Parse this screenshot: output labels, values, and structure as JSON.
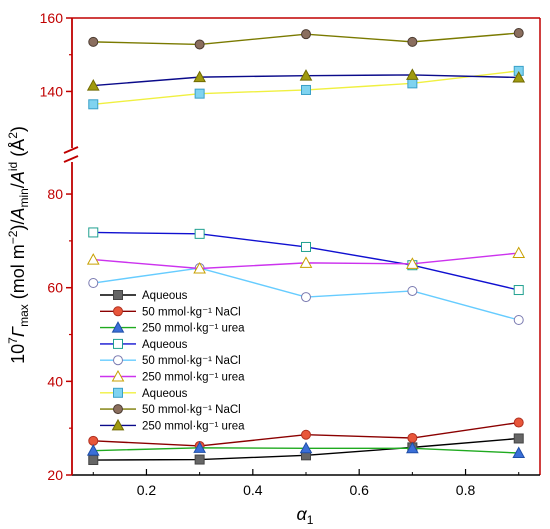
{
  "chart_data": {
    "type": "line",
    "xlabel": "α",
    "xlabel_sub": "1",
    "ylabel_parts": {
      "pre": "10",
      "pre_sup": "7",
      "gamma": "Γ",
      "gamma_sub": "max",
      "mid": " (mol m",
      "mid_sup": "−2",
      "mid_close": ")/",
      "a1": "A",
      "a1_sub": "min",
      "slash": "/",
      "a2": "A",
      "a2_sup": "id",
      "unit": " (Å",
      "unit_sup": "2",
      "unit_close": ")"
    },
    "x_ticks": [
      "0.2",
      "0.4",
      "0.6",
      "0.8"
    ],
    "x_tick_values": [
      0.2,
      0.4,
      0.6,
      0.8
    ],
    "y_ticks_lower": [
      "20",
      "40",
      "60",
      "80"
    ],
    "y_ticks_lower_values": [
      20,
      40,
      60,
      80
    ],
    "y_ticks_upper": [
      "140",
      "160"
    ],
    "y_ticks_upper_values": [
      140,
      160
    ],
    "xlim": [
      0.06,
      0.94
    ],
    "ylim_lower": [
      20,
      83
    ],
    "ylim_upper": [
      129.5,
      160
    ],
    "axis_break": true,
    "legend_position": "lower-left",
    "x": [
      0.1,
      0.3,
      0.5,
      0.7,
      0.9
    ],
    "series": [
      {
        "name": "Aqueous",
        "values": [
          23.2,
          23.3,
          24.2,
          25.9,
          27.8
        ],
        "line_color": "#000000",
        "marker": "square",
        "fill": "#666666",
        "stroke": "#444444"
      },
      {
        "name": "50 mmol·kg⁻¹ NaCl",
        "values": [
          27.3,
          26.2,
          28.6,
          27.9,
          31.2
        ],
        "line_color": "#8b0000",
        "marker": "circle",
        "fill": "#e8563a",
        "stroke": "#b03020"
      },
      {
        "name": "250 mmol·kg⁻¹ urea",
        "values": [
          25.2,
          25.8,
          25.7,
          25.7,
          24.7
        ],
        "line_color": "#1faa1f",
        "marker": "triangle",
        "fill": "#3a6fd8",
        "stroke": "#1f4fa8"
      },
      {
        "name": "Aqueous",
        "values": [
          71.8,
          71.5,
          68.7,
          64.8,
          59.5
        ],
        "line_color": "#1010d0",
        "marker": "square",
        "fill": "#ffffff",
        "stroke": "#1fa090"
      },
      {
        "name": "50 mmol·kg⁻¹ NaCl",
        "values": [
          61.0,
          64.2,
          58.0,
          59.3,
          53.1
        ],
        "line_color": "#66ccff",
        "marker": "circle",
        "fill": "#ffffff",
        "stroke": "#7a7ab0"
      },
      {
        "name": "250 mmol·kg⁻¹ urea",
        "values": [
          66.0,
          64.1,
          65.3,
          65.1,
          67.4
        ],
        "line_color": "#cc33ee",
        "marker": "triangle",
        "fill": "#ffffff",
        "stroke": "#c8a000"
      },
      {
        "name": "Aqueous",
        "values": [
          136.5,
          139.4,
          140.4,
          142.2,
          145.6
        ],
        "line_color": "#f0f040",
        "marker": "square",
        "fill": "#7fd3f0",
        "stroke": "#3aa0c8"
      },
      {
        "name": "50 mmol·kg⁻¹ NaCl",
        "values": [
          153.5,
          152.8,
          155.6,
          153.5,
          155.9
        ],
        "line_color": "#7a7a00",
        "marker": "circle",
        "fill": "#8a6e5e",
        "stroke": "#4a3a30"
      },
      {
        "name": "250 mmol·kg⁻¹ urea",
        "values": [
          141.6,
          143.9,
          144.3,
          144.5,
          143.8
        ],
        "line_color": "#0a0a8a",
        "marker": "triangle",
        "fill": "#a09a10",
        "stroke": "#706a00"
      }
    ]
  }
}
